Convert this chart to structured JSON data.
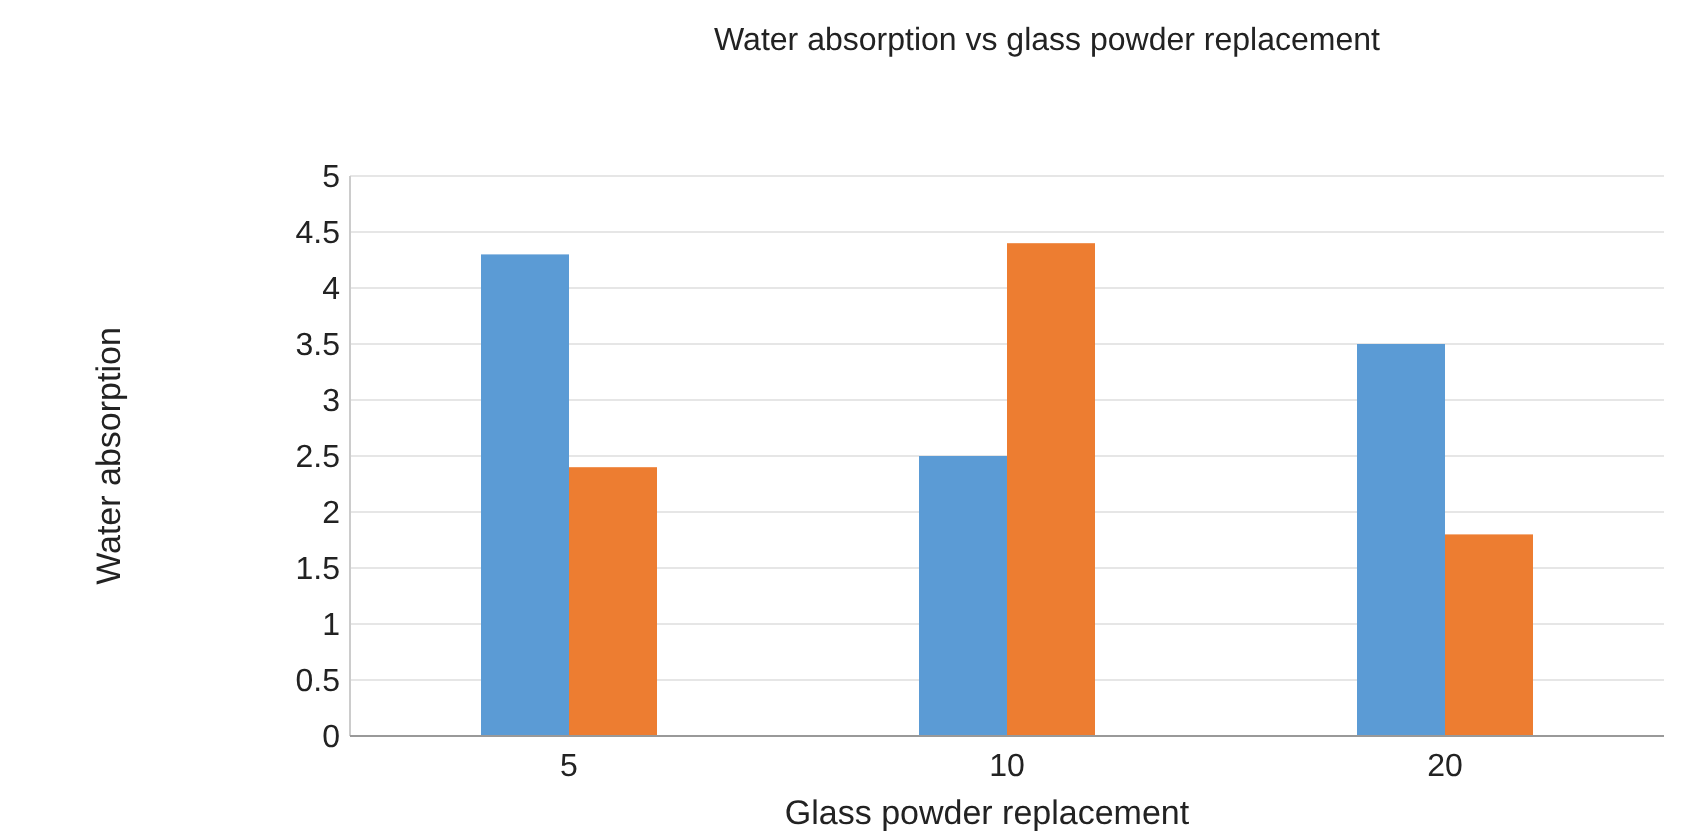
{
  "chart_data": {
    "type": "bar",
    "title": "Water absorption vs glass powder replacement",
    "xlabel": "Glass powder replacement",
    "ylabel": "Water absorption",
    "categories": [
      "5",
      "10",
      "20"
    ],
    "series": [
      {
        "color": "#5b9bd5",
        "values": [
          4.3,
          2.5,
          3.5
        ]
      },
      {
        "color": "#ed7d31",
        "values": [
          2.4,
          4.4,
          1.8
        ]
      }
    ],
    "ylim": [
      0,
      5
    ],
    "yticks": [
      0,
      0.5,
      1,
      1.5,
      2,
      2.5,
      3,
      3.5,
      4,
      4.5,
      5
    ],
    "grid": "y"
  }
}
